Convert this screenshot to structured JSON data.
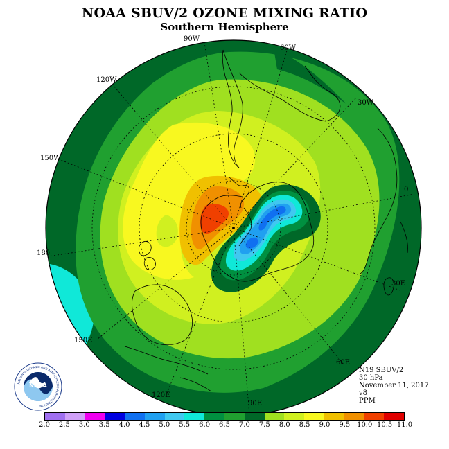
{
  "header": {
    "title": "NOAA SBUV/2 OZONE MIXING RATIO",
    "subtitle": "Southern Hemisphere"
  },
  "longitudes": [
    "90W",
    "60W",
    "30W",
    "0",
    "30E",
    "60E",
    "90E",
    "120E",
    "150E",
    "180",
    "150W",
    "120W"
  ],
  "info": {
    "satellite": "N19 SBUV/2",
    "level": "30 hPa",
    "date": "November 11, 2017",
    "version": "v8",
    "units": "PPM"
  },
  "colorbar": {
    "ticks": [
      "2.0",
      "2.5",
      "3.0",
      "3.5",
      "4.0",
      "4.5",
      "5.0",
      "5.5",
      "6.0",
      "6.5",
      "7.0",
      "7.5",
      "8.0",
      "8.5",
      "9.0",
      "9.5",
      "10.0",
      "10.5",
      "11.0"
    ],
    "colors": [
      "#a070f0",
      "#d0a0f8",
      "#f000f0",
      "#0000e0",
      "#1070f0",
      "#20a0f0",
      "#40c8f0",
      "#10e8d8",
      "#009040",
      "#20a030",
      "#006828",
      "#a0e020",
      "#d0f020",
      "#f8f820",
      "#f0c000",
      "#f09000",
      "#f04000",
      "#e00000",
      "#8b5a2b"
    ]
  },
  "logo": {
    "name": "NOAA",
    "ring_text": "NATIONAL OCEANIC AND ATMOSPHERIC ADMINISTRATION",
    "bottom_text": "U.S. DEPARTMENT OF COMMERCE"
  }
}
